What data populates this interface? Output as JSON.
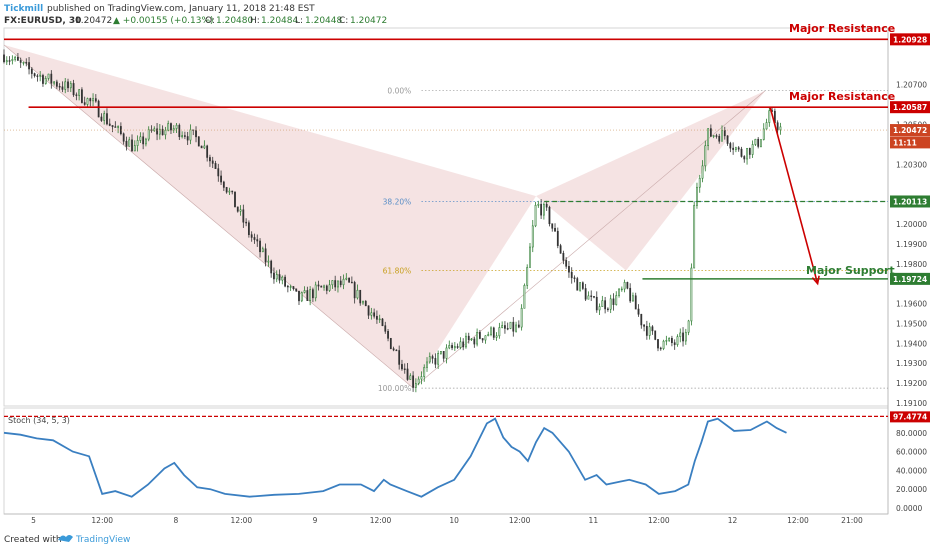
{
  "header": {
    "author": "Tickmill",
    "published": "published on TradingView.com, January 11, 2018 21:48 EST",
    "symbol": "FX:EURUSD, 30",
    "last": "1.20472",
    "change": "▲ +0.00155 (+0.13%)",
    "o_label": "O:",
    "o": "1.20480",
    "h_label": "H:",
    "h": "1.20484",
    "l_label": "L:",
    "l": "1.20448",
    "c_label": "C:",
    "c": "1.20472"
  },
  "footer": {
    "created_with": "Created with",
    "brand": "TradingView"
  },
  "colors": {
    "up": "#2e7d32",
    "down": "#333333",
    "resistance": "#cc0000",
    "support": "#2e7d32",
    "fib38": "#5b8fc7",
    "fib61": "#c8a020",
    "stoch": "#3a7fc1",
    "pattern": "#f3dede"
  },
  "chart_data": {
    "type": "candlestick",
    "price_axis": {
      "ylim": [
        1.19085,
        1.20985
      ],
      "ticks": [
        "1.20700",
        "1.20500",
        "1.20300",
        "1.20100",
        "1.20000",
        "1.19900",
        "1.19800",
        "1.19600",
        "1.19500",
        "1.19400",
        "1.19300",
        "1.19200",
        "1.19100"
      ]
    },
    "time_axis": {
      "labels": [
        "5",
        "12:00",
        "8",
        "12:00",
        "9",
        "12:00",
        "10",
        "12:00",
        "11",
        "12:00",
        "12",
        "12:00",
        "21:00"
      ],
      "label_index": [
        18,
        60,
        105,
        145,
        190,
        230,
        275,
        315,
        360,
        400,
        445,
        485,
        518
      ],
      "total_bars": 540
    },
    "price_labels": {
      "r1": {
        "value": 1.20928,
        "text": "1.20928"
      },
      "r2": {
        "value": 1.20587,
        "text": "1.20587"
      },
      "last": {
        "value": 1.20472,
        "text": "1.20472"
      },
      "countdown": {
        "value": 1.2041,
        "text": "11:11"
      },
      "fib38": {
        "value": 1.20113,
        "text": "1.20113"
      },
      "support": {
        "value": 1.19724,
        "text": "1.19724"
      }
    },
    "annotations": {
      "major_resistance_top": "Major Resistance",
      "major_resistance": "Major Resistance",
      "major_support": "Major Support"
    },
    "fib_levels": [
      {
        "label": "0.00%",
        "value": 1.2067
      },
      {
        "label": "38.20%",
        "value": 1.20113
      },
      {
        "label": "61.80%",
        "value": 1.19766
      },
      {
        "label": "100.00%",
        "value": 1.19175
      }
    ],
    "pattern_points": [
      {
        "bar": 0,
        "price": 1.209
      },
      {
        "bar": 250,
        "price": 1.19175
      },
      {
        "bar": 325,
        "price": 1.2014
      },
      {
        "bar": 380,
        "price": 1.19766
      },
      {
        "bar": 465,
        "price": 1.2067
      }
    ],
    "projection": {
      "from": {
        "bar": 468,
        "price": 1.20587
      },
      "to": {
        "bar": 497,
        "price": 1.197
      }
    },
    "candles_path": [
      [
        0,
        1.2085
      ],
      [
        20,
        1.2075
      ],
      [
        40,
        1.2068
      ],
      [
        55,
        1.206
      ],
      [
        65,
        1.205
      ],
      [
        80,
        1.2038
      ],
      [
        90,
        1.2046
      ],
      [
        105,
        1.2048
      ],
      [
        120,
        1.2042
      ],
      [
        135,
        1.202
      ],
      [
        150,
        1.1995
      ],
      [
        165,
        1.1975
      ],
      [
        180,
        1.1962
      ],
      [
        195,
        1.1968
      ],
      [
        210,
        1.197
      ],
      [
        225,
        1.1955
      ],
      [
        240,
        1.1935
      ],
      [
        250,
        1.192
      ],
      [
        260,
        1.193
      ],
      [
        275,
        1.1938
      ],
      [
        295,
        1.1945
      ],
      [
        315,
        1.1948
      ],
      [
        325,
        1.201
      ],
      [
        332,
        1.2005
      ],
      [
        345,
        1.1975
      ],
      [
        360,
        1.196
      ],
      [
        370,
        1.196
      ],
      [
        380,
        1.1968
      ],
      [
        390,
        1.195
      ],
      [
        400,
        1.194
      ],
      [
        410,
        1.194
      ],
      [
        418,
        1.1945
      ],
      [
        422,
        1.2015
      ],
      [
        430,
        1.2045
      ],
      [
        440,
        1.2045
      ],
      [
        450,
        1.2035
      ],
      [
        460,
        1.204
      ],
      [
        468,
        1.2055
      ],
      [
        475,
        1.2047
      ]
    ],
    "stochastic": {
      "label": "Stoch (34, 5, 3)",
      "ylim": [
        0,
        100
      ],
      "ticks": [
        "80.0000",
        "60.0000",
        "40.0000",
        "20.0000",
        "0.0000"
      ],
      "overbought": {
        "value": 97.4774,
        "text": "97.4774"
      },
      "path": [
        [
          0,
          80
        ],
        [
          10,
          78
        ],
        [
          20,
          74
        ],
        [
          30,
          72
        ],
        [
          42,
          60
        ],
        [
          52,
          55
        ],
        [
          60,
          15
        ],
        [
          68,
          18
        ],
        [
          78,
          12
        ],
        [
          88,
          25
        ],
        [
          98,
          42
        ],
        [
          104,
          48
        ],
        [
          110,
          35
        ],
        [
          118,
          22
        ],
        [
          126,
          20
        ],
        [
          135,
          15
        ],
        [
          150,
          12
        ],
        [
          165,
          14
        ],
        [
          180,
          15
        ],
        [
          195,
          18
        ],
        [
          205,
          25
        ],
        [
          218,
          25
        ],
        [
          226,
          18
        ],
        [
          232,
          30
        ],
        [
          236,
          25
        ],
        [
          246,
          18
        ],
        [
          255,
          12
        ],
        [
          265,
          22
        ],
        [
          275,
          30
        ],
        [
          285,
          55
        ],
        [
          295,
          90
        ],
        [
          300,
          95
        ],
        [
          305,
          75
        ],
        [
          310,
          65
        ],
        [
          315,
          60
        ],
        [
          320,
          50
        ],
        [
          325,
          70
        ],
        [
          330,
          85
        ],
        [
          335,
          80
        ],
        [
          345,
          60
        ],
        [
          355,
          30
        ],
        [
          362,
          35
        ],
        [
          368,
          25
        ],
        [
          376,
          28
        ],
        [
          382,
          30
        ],
        [
          392,
          25
        ],
        [
          400,
          15
        ],
        [
          410,
          18
        ],
        [
          418,
          25
        ],
        [
          422,
          50
        ],
        [
          426,
          70
        ],
        [
          430,
          92
        ],
        [
          436,
          95
        ],
        [
          446,
          82
        ],
        [
          456,
          83
        ],
        [
          466,
          92
        ],
        [
          472,
          85
        ],
        [
          478,
          80
        ]
      ]
    }
  }
}
